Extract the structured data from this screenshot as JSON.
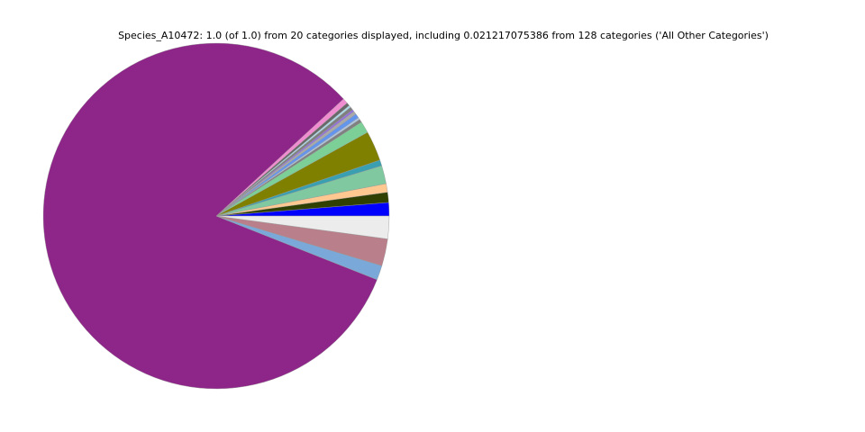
{
  "chart_data": {
    "type": "pie",
    "title": "Species_A10472: 1.0 (of 1.0) from 20 categories displayed, including 0.021217075386 from 128 categories ('All Other Categories')",
    "values": [
      0.0125,
      0.0095,
      0.008,
      0.017,
      0.0055,
      0.028,
      0.011,
      0.003,
      0.002,
      0.004,
      0.003,
      0.002,
      0.003,
      0.002,
      0.003,
      0.005,
      0.8214,
      0.0136,
      0.0253,
      0.0212
    ],
    "colors": [
      "#0000ff",
      "#2f4000",
      "#ffc890",
      "#80c8a0",
      "#3a9fb0",
      "#808000",
      "#7ccf96",
      "#808080",
      "#b0c4de",
      "#6495ed",
      "#a9a9a9",
      "#9370db",
      "#7f7f7f",
      "#add8e6",
      "#696969",
      "#f08cd0",
      "#8e2589",
      "#7aa8d8",
      "#b97f8a",
      "#ececec"
    ]
  }
}
